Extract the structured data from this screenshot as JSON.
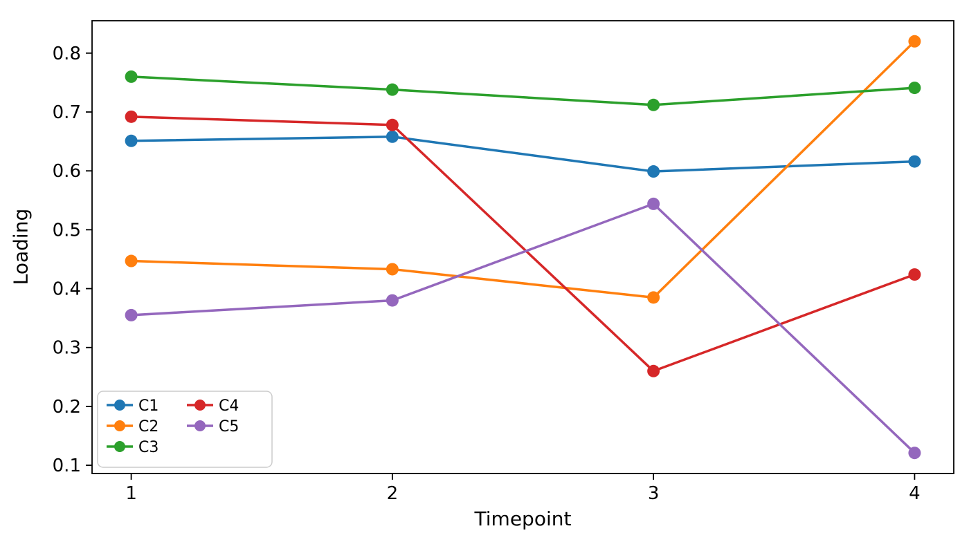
{
  "chart_data": {
    "type": "line",
    "title": "",
    "xlabel": "Timepoint",
    "ylabel": "Loading",
    "x": [
      1,
      2,
      3,
      4
    ],
    "x_tick_labels": [
      "1",
      "2",
      "3",
      "4"
    ],
    "y_ticks": [
      0.1,
      0.2,
      0.3,
      0.4,
      0.5,
      0.6,
      0.7,
      0.8
    ],
    "xlim": [
      0.85,
      4.15
    ],
    "ylim": [
      0.086,
      0.855
    ],
    "grid": false,
    "legend_position": "lower left",
    "legend_columns": 2,
    "series": [
      {
        "name": "C1",
        "color": "#1f77b4",
        "values": [
          0.651,
          0.658,
          0.599,
          0.616
        ]
      },
      {
        "name": "C2",
        "color": "#ff7f0e",
        "values": [
          0.447,
          0.433,
          0.385,
          0.82
        ]
      },
      {
        "name": "C3",
        "color": "#2ca02c",
        "values": [
          0.76,
          0.738,
          0.712,
          0.741
        ]
      },
      {
        "name": "C4",
        "color": "#d62728",
        "values": [
          0.692,
          0.678,
          0.26,
          0.424
        ]
      },
      {
        "name": "C5",
        "color": "#9467bd",
        "values": [
          0.355,
          0.38,
          0.544,
          0.121
        ]
      }
    ]
  }
}
